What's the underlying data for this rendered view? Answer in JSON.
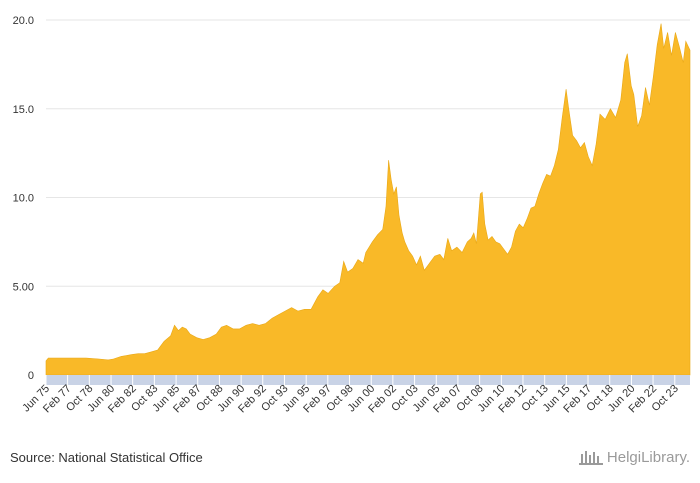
{
  "chart_data": {
    "type": "area",
    "title": "",
    "xlabel": "",
    "ylabel": "",
    "ylim": [
      0,
      20
    ],
    "y_ticks": [
      "0",
      "5.00",
      "10.0",
      "15.0",
      "20.0"
    ],
    "y_tick_values": [
      0,
      5,
      10,
      15,
      20
    ],
    "x_start": 1975.42,
    "x_end": 2024.92,
    "x_tick_labels": [
      "Jun 75",
      "Feb 77",
      "Oct 78",
      "Jun 80",
      "Feb 82",
      "Oct 83",
      "Jun 85",
      "Feb 87",
      "Oct 88",
      "Jun 90",
      "Feb 92",
      "Oct 93",
      "Jun 95",
      "Feb 97",
      "Oct 98",
      "Jun 00",
      "Feb 02",
      "Oct 03",
      "Jun 05",
      "Feb 07",
      "Oct 08",
      "Jun 10",
      "Feb 12",
      "Oct 13",
      "Jun 15",
      "Feb 17",
      "Oct 18",
      "Jun 20",
      "Feb 22",
      "Oct 23"
    ],
    "x_tick_positions": [
      1975.42,
      1977.08,
      1978.75,
      1980.42,
      1982.08,
      1983.75,
      1985.42,
      1987.08,
      1988.75,
      1990.42,
      1992.08,
      1993.75,
      1995.42,
      1997.08,
      1998.75,
      2000.42,
      2002.08,
      2003.75,
      2005.42,
      2007.08,
      2008.75,
      2010.42,
      2012.08,
      2013.75,
      2015.42,
      2017.08,
      2018.75,
      2020.42,
      2022.08,
      2023.75
    ],
    "series": [
      {
        "name": "Value",
        "color": "#F9B928",
        "points": [
          [
            1975.42,
            0.8
          ],
          [
            1975.6,
            0.95
          ],
          [
            1976.5,
            0.95
          ],
          [
            1977.5,
            0.95
          ],
          [
            1978.5,
            0.95
          ],
          [
            1979.5,
            0.9
          ],
          [
            1980.2,
            0.85
          ],
          [
            1980.6,
            0.9
          ],
          [
            1981.2,
            1.05
          ],
          [
            1981.6,
            1.1
          ],
          [
            1982.0,
            1.15
          ],
          [
            1982.5,
            1.2
          ],
          [
            1983.0,
            1.2
          ],
          [
            1983.5,
            1.3
          ],
          [
            1984.0,
            1.4
          ],
          [
            1984.5,
            1.9
          ],
          [
            1985.0,
            2.2
          ],
          [
            1985.3,
            2.8
          ],
          [
            1985.6,
            2.5
          ],
          [
            1985.9,
            2.7
          ],
          [
            1986.2,
            2.6
          ],
          [
            1986.5,
            2.3
          ],
          [
            1987.0,
            2.1
          ],
          [
            1987.5,
            2.0
          ],
          [
            1988.0,
            2.1
          ],
          [
            1988.5,
            2.3
          ],
          [
            1988.9,
            2.7
          ],
          [
            1989.3,
            2.8
          ],
          [
            1989.8,
            2.6
          ],
          [
            1990.3,
            2.6
          ],
          [
            1990.8,
            2.8
          ],
          [
            1991.3,
            2.9
          ],
          [
            1991.8,
            2.8
          ],
          [
            1992.3,
            2.9
          ],
          [
            1992.8,
            3.2
          ],
          [
            1993.3,
            3.4
          ],
          [
            1993.8,
            3.6
          ],
          [
            1994.3,
            3.8
          ],
          [
            1994.8,
            3.6
          ],
          [
            1995.3,
            3.7
          ],
          [
            1995.8,
            3.7
          ],
          [
            1996.3,
            4.4
          ],
          [
            1996.7,
            4.8
          ],
          [
            1997.1,
            4.6
          ],
          [
            1997.6,
            5.0
          ],
          [
            1998.0,
            5.2
          ],
          [
            1998.3,
            6.4
          ],
          [
            1998.6,
            5.8
          ],
          [
            1999.0,
            6.0
          ],
          [
            1999.4,
            6.5
          ],
          [
            1999.8,
            6.3
          ],
          [
            2000.0,
            6.9
          ],
          [
            2000.5,
            7.5
          ],
          [
            2000.9,
            7.9
          ],
          [
            2001.3,
            8.2
          ],
          [
            2001.55,
            9.5
          ],
          [
            2001.75,
            12.1
          ],
          [
            2001.95,
            11.0
          ],
          [
            2002.15,
            10.2
          ],
          [
            2002.35,
            10.6
          ],
          [
            2002.55,
            9.0
          ],
          [
            2002.8,
            8.0
          ],
          [
            2003.0,
            7.5
          ],
          [
            2003.3,
            7.0
          ],
          [
            2003.6,
            6.7
          ],
          [
            2003.9,
            6.2
          ],
          [
            2004.2,
            6.7
          ],
          [
            2004.5,
            5.9
          ],
          [
            2004.9,
            6.3
          ],
          [
            2005.3,
            6.7
          ],
          [
            2005.7,
            6.8
          ],
          [
            2006.0,
            6.5
          ],
          [
            2006.3,
            7.7
          ],
          [
            2006.6,
            7.0
          ],
          [
            2007.0,
            7.2
          ],
          [
            2007.4,
            6.9
          ],
          [
            2007.8,
            7.5
          ],
          [
            2008.1,
            7.7
          ],
          [
            2008.3,
            8.0
          ],
          [
            2008.5,
            7.4
          ],
          [
            2008.8,
            10.2
          ],
          [
            2008.95,
            10.3
          ],
          [
            2009.15,
            8.5
          ],
          [
            2009.4,
            7.6
          ],
          [
            2009.7,
            7.8
          ],
          [
            2010.0,
            7.5
          ],
          [
            2010.3,
            7.4
          ],
          [
            2010.6,
            7.1
          ],
          [
            2010.9,
            6.8
          ],
          [
            2011.2,
            7.2
          ],
          [
            2011.5,
            8.1
          ],
          [
            2011.8,
            8.5
          ],
          [
            2012.1,
            8.3
          ],
          [
            2012.4,
            8.8
          ],
          [
            2012.7,
            9.4
          ],
          [
            2013.0,
            9.5
          ],
          [
            2013.3,
            10.2
          ],
          [
            2013.6,
            10.8
          ],
          [
            2013.9,
            11.3
          ],
          [
            2014.2,
            11.2
          ],
          [
            2014.5,
            11.8
          ],
          [
            2014.8,
            12.7
          ],
          [
            2015.1,
            14.5
          ],
          [
            2015.4,
            16.1
          ],
          [
            2015.6,
            15.0
          ],
          [
            2015.9,
            13.5
          ],
          [
            2016.2,
            13.2
          ],
          [
            2016.5,
            12.8
          ],
          [
            2016.8,
            13.1
          ],
          [
            2017.1,
            12.3
          ],
          [
            2017.4,
            11.8
          ],
          [
            2017.7,
            13.0
          ],
          [
            2018.0,
            14.7
          ],
          [
            2018.4,
            14.4
          ],
          [
            2018.8,
            15.0
          ],
          [
            2019.2,
            14.5
          ],
          [
            2019.6,
            15.5
          ],
          [
            2019.9,
            17.6
          ],
          [
            2020.1,
            18.1
          ],
          [
            2020.4,
            16.3
          ],
          [
            2020.6,
            15.8
          ],
          [
            2020.9,
            14.0
          ],
          [
            2021.2,
            14.6
          ],
          [
            2021.5,
            16.2
          ],
          [
            2021.8,
            15.2
          ],
          [
            2022.1,
            16.8
          ],
          [
            2022.4,
            18.6
          ],
          [
            2022.7,
            19.8
          ],
          [
            2022.9,
            18.4
          ],
          [
            2023.2,
            19.3
          ],
          [
            2023.5,
            18.0
          ],
          [
            2023.8,
            19.3
          ],
          [
            2024.1,
            18.5
          ],
          [
            2024.4,
            17.6
          ],
          [
            2024.6,
            18.8
          ],
          [
            2024.92,
            18.3
          ]
        ]
      }
    ],
    "grid": true
  },
  "footer": {
    "source": "Source: National Statistical Office",
    "logo_text": "HelgiLibrary.",
    "logo_color": "#9a9a9a"
  },
  "colors": {
    "area": "#F9B928",
    "axis_band": "#c9d3e6",
    "grid": "#e6e6e6"
  }
}
